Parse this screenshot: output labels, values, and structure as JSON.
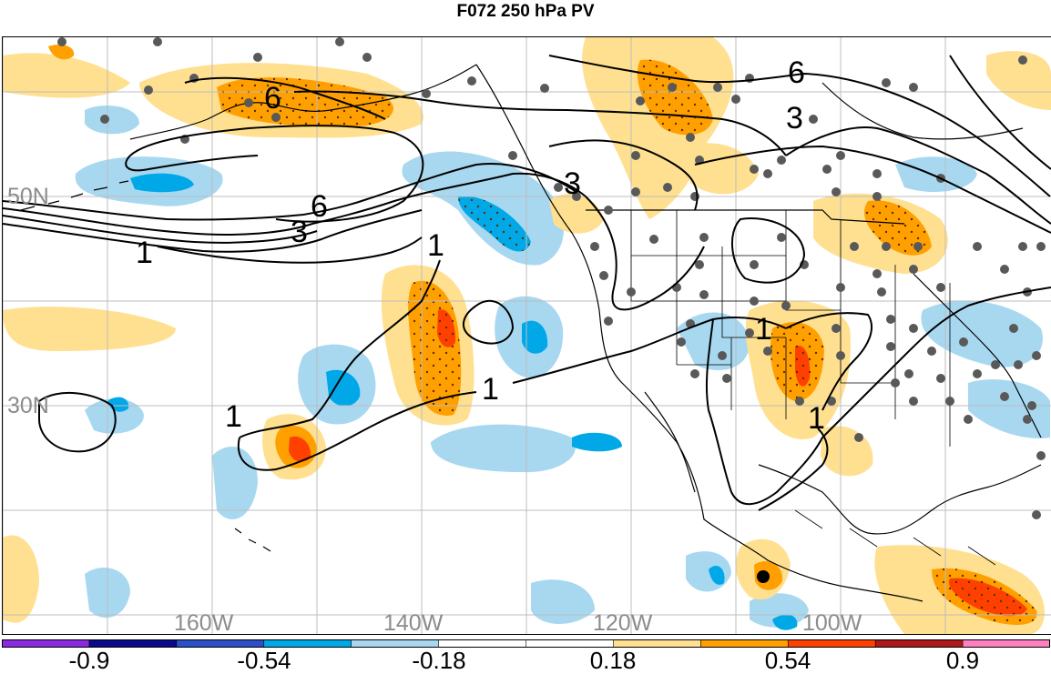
{
  "title": "F072 250 hPa PV",
  "axes": {
    "lon_labels": [
      "160W",
      "140W",
      "120W",
      "100W"
    ],
    "lat_labels": [
      "50N",
      "30N"
    ]
  },
  "contour_labels": [
    "6",
    "6",
    "6",
    "3",
    "3",
    "3",
    "1",
    "1",
    "1",
    "1",
    "1",
    "1"
  ],
  "colorbar": {
    "colors": [
      "#8a2be2",
      "#0a0a8c",
      "#2b50c8",
      "#00a8e8",
      "#a8d8f0",
      "#ffffff",
      "#ffffff",
      "#ffe090",
      "#ffa000",
      "#ff4000",
      "#b01818",
      "#ff80c0"
    ],
    "tick_labels": [
      "-0.9",
      "-0.54",
      "-0.18",
      "0.18",
      "0.54",
      "0.9"
    ]
  },
  "chart_data": {
    "type": "heatmap",
    "title": "F072 250 hPa PV",
    "xlabel": "",
    "ylabel": "",
    "x_ticks": [
      "160W",
      "140W",
      "120W",
      "100W"
    ],
    "y_ticks": [
      "50N",
      "30N"
    ],
    "color_scale": {
      "bounds": [
        -1.08,
        -0.9,
        -0.72,
        -0.54,
        -0.36,
        -0.18,
        0,
        0.18,
        0.36,
        0.54,
        0.72,
        0.9,
        1.08
      ],
      "tick_labels": [
        "-0.9",
        "-0.54",
        "-0.18",
        "0.18",
        "0.54",
        "0.9"
      ]
    },
    "contour_levels": [
      1,
      3,
      6
    ],
    "grid": true
  }
}
